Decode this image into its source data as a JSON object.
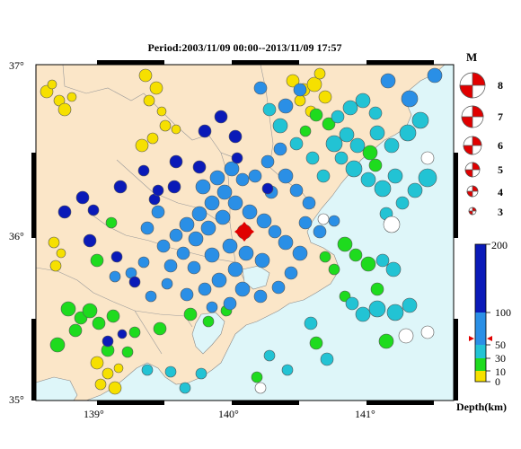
{
  "title": "Period:2003/11/09 00:00--2013/11/09 17:57",
  "latitude_labels": [
    "37°",
    "36°",
    "35°"
  ],
  "longitude_labels": [
    "139°",
    "140°",
    "141°"
  ],
  "magnitude_legend": {
    "header": "M",
    "values": [
      "8",
      "7",
      "6",
      "5",
      "4",
      "3"
    ]
  },
  "depth_scale": {
    "title": "Depth(km)",
    "ticks": [
      "200",
      "100",
      "50",
      "30",
      "10",
      "0"
    ]
  },
  "colors": {
    "land": "#fbe6c8",
    "sea": "#def6f9",
    "depth_0_10": "#f6e000",
    "depth_10_30": "#1edb1e",
    "depth_30_50": "#22c3d4",
    "depth_50_100": "#2a8fe6",
    "depth_100_200": "#0a1ab8",
    "highlight": "#e00000"
  }
}
